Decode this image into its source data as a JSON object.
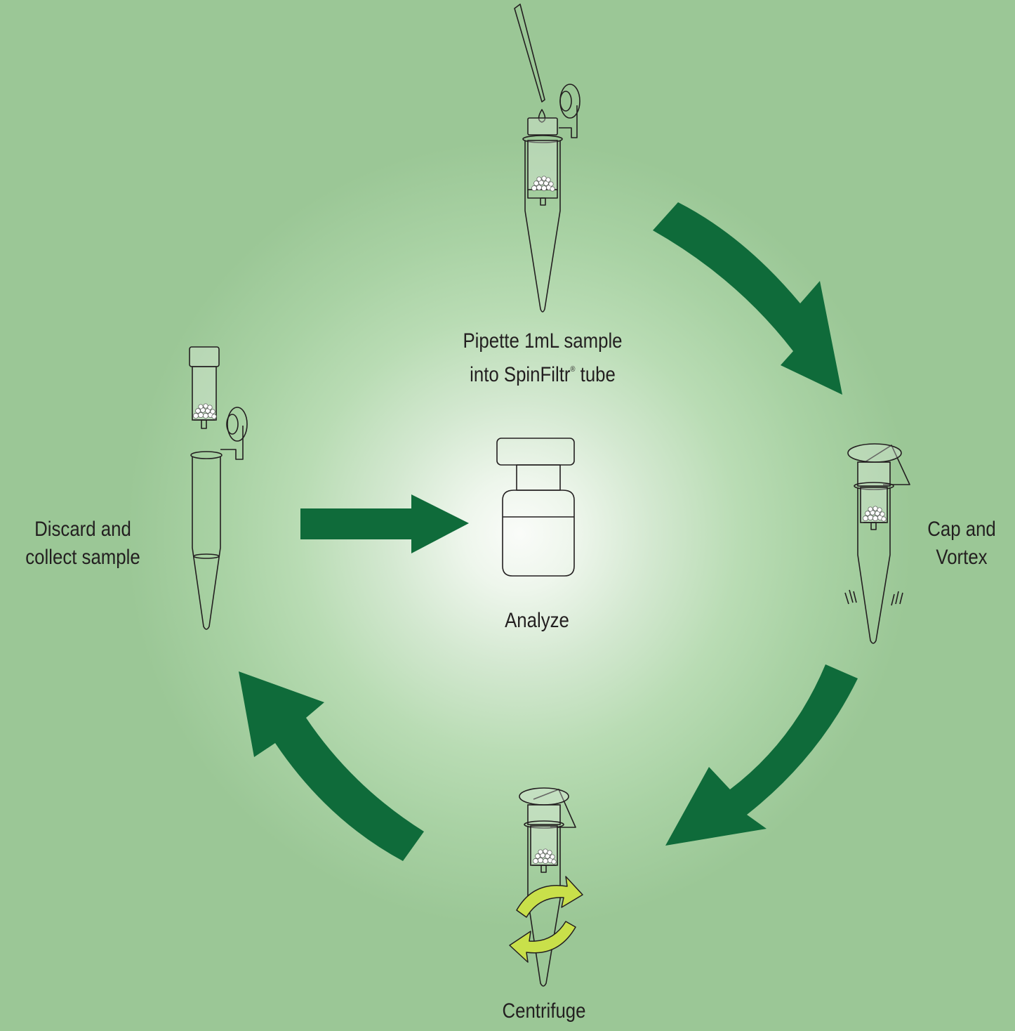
{
  "steps": {
    "pipette": {
      "line1": "Pipette 1mL sample",
      "line2_pre": "into SpinFiltr",
      "line2_sup": "®",
      "line2_post": " tube"
    },
    "cap_vortex": {
      "line1": "Cap and",
      "line2": "Vortex"
    },
    "centrifuge": {
      "label": "Centrifuge"
    },
    "discard": {
      "line1": "Discard and",
      "line2": "collect sample"
    },
    "analyze": {
      "label": "Analyze"
    }
  },
  "colors": {
    "arrow": "#0f6b3a",
    "rotation_arrow": "#c9e04a",
    "background_center": "#fafcf9",
    "background_edge": "#9bc796"
  }
}
